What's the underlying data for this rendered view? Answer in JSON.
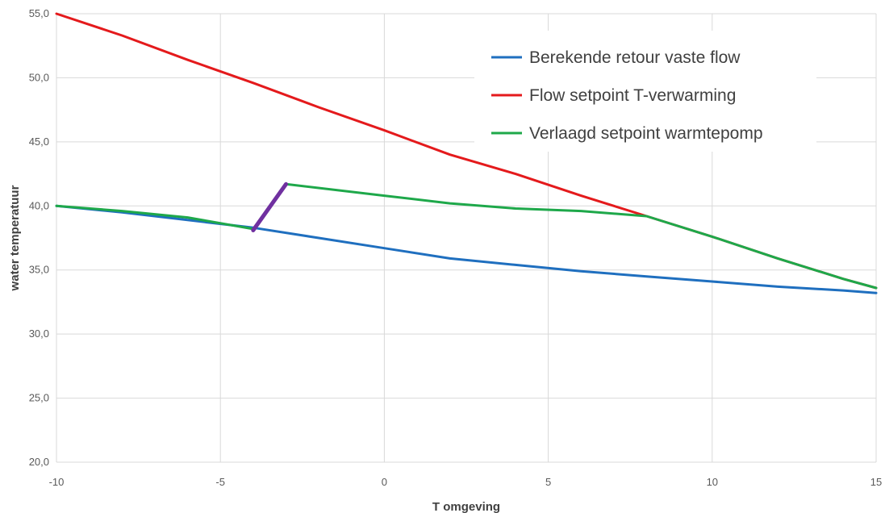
{
  "chart_data": {
    "type": "line",
    "title": "",
    "xlabel": "T omgeving",
    "ylabel": "water temperatuur",
    "xlim": [
      -10,
      15
    ],
    "ylim": [
      20,
      55
    ],
    "x_ticks": [
      -10,
      -5,
      0,
      5,
      10,
      15
    ],
    "y_ticks": [
      20,
      25,
      30,
      35,
      40,
      45,
      50,
      55
    ],
    "x_tick_labels": [
      "-10",
      "-5",
      "0",
      "5",
      "10",
      "15"
    ],
    "y_tick_labels": [
      "20,0",
      "25,0",
      "30,0",
      "35,0",
      "40,0",
      "45,0",
      "50,0",
      "55,0"
    ],
    "grid": true,
    "legend_position": "top-right",
    "series": [
      {
        "name": "Berekende retour vaste flow",
        "color": "#1f6fbf",
        "in_legend": true,
        "x": [
          -10,
          -8,
          -6,
          -4,
          -2,
          0,
          2,
          4,
          6,
          8,
          10,
          12,
          14,
          15
        ],
        "y": [
          40.0,
          39.5,
          38.9,
          38.3,
          37.5,
          36.7,
          35.9,
          35.4,
          34.9,
          34.5,
          34.1,
          33.7,
          33.4,
          33.2
        ]
      },
      {
        "name": "Flow setpoint T-verwarming",
        "color": "#e41a1c",
        "in_legend": true,
        "x": [
          -10,
          -8,
          -6,
          -4,
          -2,
          0,
          2,
          4,
          6,
          8,
          10,
          12,
          14,
          15
        ],
        "y": [
          55.0,
          53.3,
          51.4,
          49.6,
          47.7,
          45.9,
          44.0,
          42.5,
          40.8,
          39.2,
          37.6,
          35.9,
          34.3,
          33.6
        ]
      },
      {
        "name": "Verlaagd setpoint warmtepomp",
        "color": "#1ea84a",
        "in_legend": true,
        "x": [
          -10,
          -8,
          -6,
          -4,
          -3,
          0,
          2,
          4,
          6,
          8,
          10,
          12,
          14,
          15
        ],
        "y": [
          40.0,
          39.6,
          39.1,
          38.2,
          41.7,
          40.8,
          40.2,
          39.8,
          39.6,
          39.2,
          37.6,
          35.9,
          34.3,
          33.6
        ]
      },
      {
        "name": "",
        "color": "#7030a0",
        "in_legend": false,
        "x": [
          -4,
          -3
        ],
        "y": [
          38.1,
          41.7
        ]
      }
    ]
  }
}
